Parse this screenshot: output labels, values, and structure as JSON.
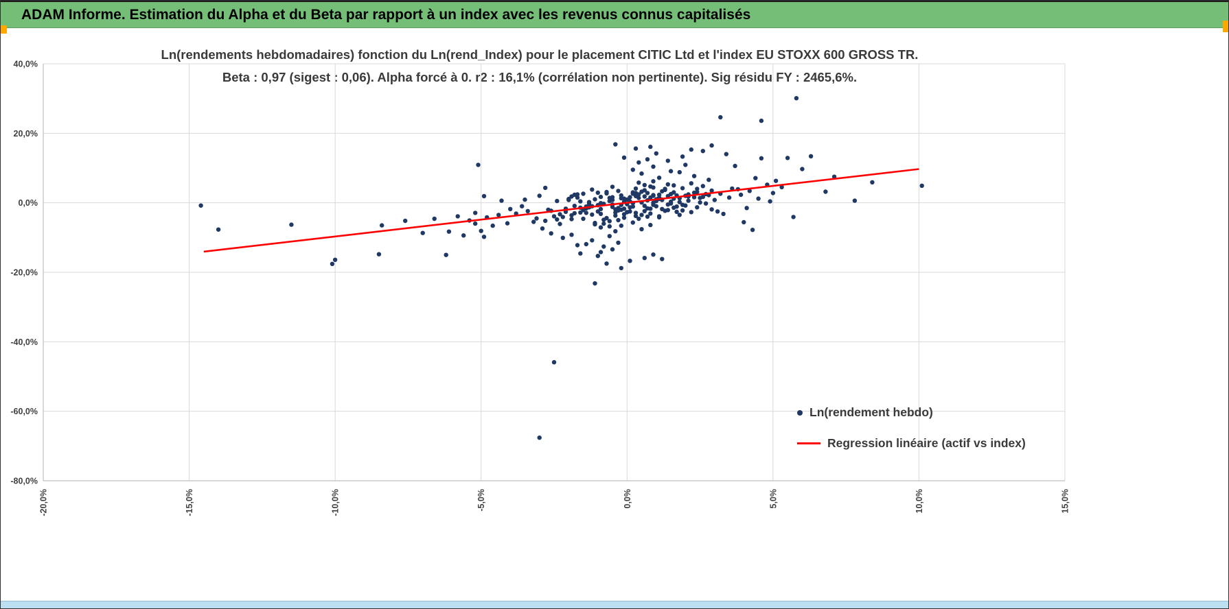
{
  "header": {
    "title": "ADAM Informe. Estimation du Alpha et du Beta par rapport à un index avec les revenus connus capitalisés"
  },
  "colors": {
    "header_green": "#75BE78",
    "scrollbar_blue": "#BCDFF2",
    "marker_orange": "#FFA800",
    "grid_gray": "#D9D9D9",
    "axis_gray": "#BFBFBF"
  },
  "chart_data": {
    "type": "scatter",
    "title_line1": "Ln(rendements hebdomadaires) fonction du Ln(rend_Index) pour le placement CITIC Ltd et l'index EU STOXX 600 GROSS TR.",
    "title_line2": "Beta : 0,97 (sigest : 0,06).  Alpha forcé à 0. r2 : 16,1% (corrélation non pertinente). Sig résidu FY : 2465,6%.",
    "xlabel": "",
    "ylabel": "",
    "xlim": [
      -20,
      15
    ],
    "ylim": [
      -80,
      40
    ],
    "grid": true,
    "x_ticks": {
      "values": [
        -20,
        -15,
        -10,
        -5,
        0,
        5,
        10,
        15
      ],
      "labels": [
        "-20,0%",
        "-15,0%",
        "-10,0%",
        "-5,0%",
        "0,0%",
        "5,0%",
        "10,0%",
        "15,0%"
      ]
    },
    "y_ticks": {
      "values": [
        40,
        20,
        0,
        -20,
        -40,
        -60,
        -80
      ],
      "labels": [
        "40,0%",
        "20,0%",
        "0,0%",
        "-20,0%",
        "-40,0%",
        "-60,0%",
        "-80,0%"
      ]
    },
    "point_color": "#1F3864",
    "line_color": "#FF0000",
    "regression": {
      "beta": 0.97,
      "alpha": 0,
      "x_start": -14.5,
      "x_end": 10
    },
    "legend": [
      {
        "label": "Ln(rendement hebdo)",
        "type": "point",
        "color": "#1F3864"
      },
      {
        "label": "Regression linéaire (actif vs index)",
        "type": "line",
        "color": "#FF0000"
      }
    ],
    "points": [
      [
        0.2,
        -1.1
      ],
      [
        -0.5,
        0.8
      ],
      [
        1.1,
        2.3
      ],
      [
        -1.2,
        -3.4
      ],
      [
        0.8,
        1.5
      ],
      [
        -0.3,
        -2.2
      ],
      [
        2.1,
        1.8
      ],
      [
        -1.8,
        -0.9
      ],
      [
        0.5,
        3.2
      ],
      [
        1.4,
        -2.1
      ],
      [
        -0.9,
        1.7
      ],
      [
        0.1,
        0.4
      ],
      [
        -2.2,
        -4.1
      ],
      [
        1.9,
        4.2
      ],
      [
        -0.6,
        -5.3
      ],
      [
        0.9,
        -0.6
      ],
      [
        2.4,
        3.1
      ],
      [
        -1.5,
        2.6
      ],
      [
        0.3,
        -3.8
      ],
      [
        1.2,
        0.9
      ],
      [
        -0.4,
        -1.9
      ],
      [
        0.7,
        2.8
      ],
      [
        -2.6,
        -2.3
      ],
      [
        1.6,
        -1.4
      ],
      [
        -0.1,
        1.2
      ],
      [
        0.4,
        -4.6
      ],
      [
        2.8,
        2.2
      ],
      [
        -1.1,
        -6.2
      ],
      [
        0.6,
        5.1
      ],
      [
        -0.8,
        -0.3
      ],
      [
        1.3,
        3.7
      ],
      [
        -2.0,
        1.1
      ],
      [
        0.0,
        -2.7
      ],
      [
        1.8,
        0.2
      ],
      [
        -0.7,
        -4.4
      ],
      [
        2.2,
        5.6
      ],
      [
        -1.4,
        -1.6
      ],
      [
        0.8,
        -3.1
      ],
      [
        -0.2,
        2.1
      ],
      [
        1.0,
        1.0
      ],
      [
        -1.6,
        -2.8
      ],
      [
        0.5,
        0.1
      ],
      [
        2.0,
        -0.8
      ],
      [
        -0.9,
        -7.1
      ],
      [
        1.5,
        2.5
      ],
      [
        -0.3,
        3.4
      ],
      [
        0.2,
        -5.7
      ],
      [
        2.5,
        1.4
      ],
      [
        -1.9,
        -3.6
      ],
      [
        0.9,
        4.4
      ],
      [
        -0.5,
        -1.2
      ],
      [
        1.7,
        -2.6
      ],
      [
        -2.4,
        0.5
      ],
      [
        0.3,
        1.9
      ],
      [
        1.1,
        -4.2
      ],
      [
        -1.0,
        2.9
      ],
      [
        2.6,
        4.8
      ],
      [
        -0.6,
        -6.8
      ],
      [
        0.7,
        0.7
      ],
      [
        -1.3,
        -0.4
      ],
      [
        0.4,
        2.4
      ],
      [
        -2.8,
        -5.2
      ],
      [
        1.2,
        -1.8
      ],
      [
        -0.1,
        -3.3
      ],
      [
        2.3,
        2.9
      ],
      [
        -1.7,
        1.5
      ],
      [
        0.6,
        -2.4
      ],
      [
        1.4,
        5.3
      ],
      [
        -0.4,
        -8.2
      ],
      [
        0.1,
        1.6
      ],
      [
        2.7,
        -0.2
      ],
      [
        -1.2,
        3.8
      ],
      [
        0.8,
        -6.4
      ],
      [
        -2.1,
        -1.7
      ],
      [
        1.6,
        1.2
      ],
      [
        -0.8,
        -4.9
      ],
      [
        0.2,
        3.0
      ],
      [
        1.0,
        -1.0
      ],
      [
        -1.5,
        -2.1
      ],
      [
        2.9,
        3.5
      ],
      [
        -0.2,
        -0.6
      ],
      [
        0.9,
        2.0
      ],
      [
        -2.5,
        -3.9
      ],
      [
        1.8,
        -3.5
      ],
      [
        -0.6,
        1.4
      ],
      [
        0.5,
        -7.6
      ],
      [
        2.1,
        0.6
      ],
      [
        -1.0,
        -2.5
      ],
      [
        1.3,
        4.0
      ],
      [
        -0.3,
        -1.5
      ],
      [
        0.0,
        0.9
      ],
      [
        1.9,
        -2.2
      ],
      [
        -1.8,
        2.3
      ],
      [
        0.7,
        -4.0
      ],
      [
        -2.3,
        -6.1
      ],
      [
        1.1,
        1.1
      ],
      [
        -0.9,
        -0.1
      ],
      [
        2.4,
        -1.3
      ],
      [
        -0.5,
        4.6
      ],
      [
        0.3,
        -2.9
      ],
      [
        1.5,
        0.3
      ],
      [
        -1.1,
        -5.8
      ],
      [
        0.6,
        1.8
      ],
      [
        -0.7,
        2.7
      ],
      [
        2.2,
        -2.7
      ],
      [
        -1.4,
        -1.1
      ],
      [
        0.4,
        5.8
      ],
      [
        1.7,
        2.1
      ],
      [
        -2.7,
        -2.0
      ],
      [
        0.8,
        -1.7
      ],
      [
        -0.1,
        -4.3
      ],
      [
        1.2,
        3.3
      ],
      [
        -1.6,
        0.4
      ],
      [
        0.1,
        -1.3
      ],
      [
        2.6,
        1.7
      ],
      [
        -0.4,
        -3.7
      ],
      [
        0.9,
        6.2
      ],
      [
        -1.9,
        -4.7
      ],
      [
        1.4,
        -0.5
      ],
      [
        -0.2,
        1.3
      ],
      [
        3.2,
        2.6
      ],
      [
        -3.1,
        -4.5
      ],
      [
        2.9,
        -1.9
      ],
      [
        -3.4,
        -2.4
      ],
      [
        3.6,
        4.1
      ],
      [
        -2.9,
        -7.4
      ],
      [
        3.0,
        0.8
      ],
      [
        -3.6,
        -1.0
      ],
      [
        3.3,
        -3.2
      ],
      [
        -3.0,
        2.0
      ],
      [
        3.8,
        3.9
      ],
      [
        -3.2,
        -5.5
      ],
      [
        2.8,
        6.6
      ],
      [
        -3.8,
        -3.1
      ],
      [
        3.5,
        1.5
      ],
      [
        -2.6,
        -8.8
      ],
      [
        3.1,
        -2.5
      ],
      [
        -3.5,
        0.9
      ],
      [
        3.9,
        2.3
      ],
      [
        -2.8,
        4.3
      ],
      [
        4.2,
        3.4
      ],
      [
        -4.1,
        -5.9
      ],
      [
        4.5,
        1.2
      ],
      [
        -4.4,
        -3.5
      ],
      [
        4.8,
        5.2
      ],
      [
        -4.0,
        -1.8
      ],
      [
        4.1,
        -1.5
      ],
      [
        -4.6,
        -6.6
      ],
      [
        4.4,
        7.1
      ],
      [
        -4.3,
        0.6
      ],
      [
        5.0,
        2.8
      ],
      [
        -4.8,
        -4.2
      ],
      [
        4.6,
        12.8
      ],
      [
        -5.2,
        -2.9
      ],
      [
        5.3,
        4.5
      ],
      [
        -5.0,
        -8.1
      ],
      [
        4.9,
        0.4
      ],
      [
        -5.4,
        -5.1
      ],
      [
        5.1,
        6.3
      ],
      [
        -4.9,
        1.9
      ],
      [
        0.5,
        8.4
      ],
      [
        -0.6,
        -9.6
      ],
      [
        1.1,
        7.2
      ],
      [
        -1.2,
        -10.8
      ],
      [
        0.2,
        9.5
      ],
      [
        -0.3,
        -11.5
      ],
      [
        1.8,
        8.8
      ],
      [
        -1.9,
        -9.2
      ],
      [
        0.9,
        10.4
      ],
      [
        -0.8,
        -12.6
      ],
      [
        2.3,
        7.7
      ],
      [
        -2.2,
        -10.1
      ],
      [
        0.4,
        11.6
      ],
      [
        -0.5,
        -13.4
      ],
      [
        1.5,
        9.1
      ],
      [
        -1.4,
        -11.9
      ],
      [
        0.7,
        12.5
      ],
      [
        -0.9,
        -14.2
      ],
      [
        2.0,
        10.9
      ],
      [
        -1.7,
        -12.2
      ],
      [
        1.0,
        14.2
      ],
      [
        0.3,
        15.6
      ],
      [
        1.9,
        13.3
      ],
      [
        -0.4,
        16.8
      ],
      [
        2.6,
        14.9
      ],
      [
        0.8,
        16.1
      ],
      [
        1.4,
        12.1
      ],
      [
        2.2,
        15.3
      ],
      [
        -0.1,
        13.0
      ],
      [
        3.4,
        14.0
      ],
      [
        -1.0,
        -15.3
      ],
      [
        0.1,
        -16.7
      ],
      [
        -0.2,
        -18.8
      ],
      [
        0.6,
        -15.9
      ],
      [
        -1.6,
        -14.6
      ],
      [
        1.2,
        -16.2
      ],
      [
        -0.7,
        -17.5
      ],
      [
        0.9,
        -14.9
      ],
      [
        0.6,
        -0.9
      ],
      [
        -0.5,
        1.6
      ],
      [
        1.3,
        -2.3
      ],
      [
        -1.3,
        0.2
      ],
      [
        0.2,
        2.6
      ],
      [
        -0.2,
        -2.0
      ],
      [
        1.6,
        3.0
      ],
      [
        -1.6,
        -1.4
      ],
      [
        0.5,
        -3.5
      ],
      [
        2.1,
        2.4
      ],
      [
        -2.1,
        -2.6
      ],
      [
        1.0,
        0.5
      ],
      [
        -1.0,
        -0.7
      ],
      [
        0.3,
        4.1
      ],
      [
        -0.3,
        -5.0
      ],
      [
        1.8,
        1.3
      ],
      [
        -1.8,
        -3.0
      ],
      [
        0.9,
        2.2
      ],
      [
        -0.9,
        -1.8
      ],
      [
        2.5,
        0.1
      ],
      [
        -0.1,
        0.3
      ],
      [
        0.7,
        -1.6
      ],
      [
        -0.7,
        3.1
      ],
      [
        1.5,
        -0.2
      ],
      [
        -1.5,
        -4.6
      ],
      [
        0.4,
        1.4
      ],
      [
        -0.4,
        -2.8
      ],
      [
        2.0,
        2.0
      ],
      [
        -2.0,
        0.8
      ],
      [
        1.1,
        -3.9
      ],
      [
        -1.1,
        1.0
      ],
      [
        0.8,
        4.7
      ],
      [
        -0.8,
        -6.0
      ],
      [
        1.7,
        -1.1
      ],
      [
        -1.7,
        2.4
      ],
      [
        0.0,
        -0.4
      ],
      [
        2.3,
        1.6
      ],
      [
        -2.3,
        -3.3
      ],
      [
        1.2,
        0.8
      ],
      [
        -1.2,
        -1.0
      ],
      [
        0.1,
        -2.5
      ],
      [
        -0.6,
        0.5
      ],
      [
        1.4,
        1.9
      ],
      [
        -1.4,
        -2.9
      ],
      [
        0.6,
        3.6
      ],
      [
        -0.1,
        -1.7
      ],
      [
        1.9,
        -0.6
      ],
      [
        -1.9,
        1.8
      ],
      [
        0.2,
        -0.1
      ],
      [
        2.4,
        4.0
      ],
      [
        -2.4,
        -4.8
      ],
      [
        0.9,
        0.0
      ],
      [
        -0.9,
        -3.2
      ],
      [
        1.6,
        5.0
      ],
      [
        -0.5,
        -0.5
      ],
      [
        0.3,
        2.8
      ],
      [
        -1.3,
        -1.3
      ],
      [
        1.1,
        1.5
      ],
      [
        -0.2,
        -6.6
      ],
      [
        2.7,
        2.5
      ],
      [
        -14.6,
        -0.8
      ],
      [
        -14.0,
        -7.7
      ],
      [
        -11.5,
        -6.3
      ],
      [
        -10.0,
        -16.4
      ],
      [
        -10.1,
        -17.6
      ],
      [
        -8.5,
        -14.8
      ],
      [
        -8.4,
        -6.5
      ],
      [
        -7.6,
        -5.2
      ],
      [
        -7.0,
        -8.7
      ],
      [
        -6.6,
        -4.6
      ],
      [
        -6.2,
        -15.0
      ],
      [
        -6.1,
        -8.3
      ],
      [
        -5.8,
        -3.9
      ],
      [
        -5.6,
        -9.4
      ],
      [
        -5.2,
        -6.0
      ],
      [
        -5.1,
        10.9
      ],
      [
        -4.9,
        -9.8
      ],
      [
        -2.5,
        -45.9
      ],
      [
        -3.0,
        -67.6
      ],
      [
        -1.1,
        -23.2
      ],
      [
        5.8,
        30.1
      ],
      [
        3.2,
        24.6
      ],
      [
        4.6,
        23.6
      ],
      [
        2.9,
        16.5
      ],
      [
        7.1,
        7.5
      ],
      [
        8.4,
        5.9
      ],
      [
        10.1,
        4.9
      ],
      [
        7.8,
        0.6
      ],
      [
        6.3,
        13.4
      ],
      [
        5.5,
        12.9
      ],
      [
        6.0,
        9.7
      ],
      [
        5.7,
        -4.1
      ],
      [
        6.8,
        3.2
      ],
      [
        4.3,
        -7.8
      ],
      [
        3.7,
        10.6
      ],
      [
        4.0,
        -5.6
      ]
    ]
  }
}
